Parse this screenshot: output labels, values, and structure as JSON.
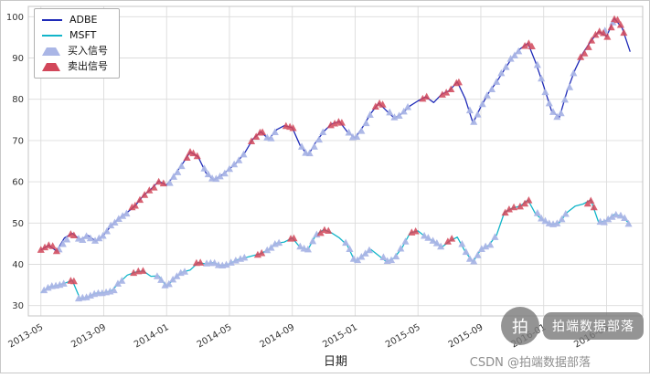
{
  "chart_data": {
    "type": "line",
    "title": "",
    "xlabel": "日期",
    "ylabel": "",
    "grid": true,
    "legend_position": "upper left",
    "ylim": [
      27.5,
      102.5
    ],
    "xlim": [
      -0.8,
      38.3
    ],
    "yticks": [
      30,
      40,
      50,
      60,
      70,
      80,
      90,
      100
    ],
    "xticks": [
      {
        "x": 0,
        "label": "2013-05"
      },
      {
        "x": 4,
        "label": "2013-09"
      },
      {
        "x": 8,
        "label": "2014-01"
      },
      {
        "x": 12,
        "label": "2014-05"
      },
      {
        "x": 16,
        "label": "2014-09"
      },
      {
        "x": 20,
        "label": "2015-01"
      },
      {
        "x": 24,
        "label": "2015-05"
      },
      {
        "x": 28,
        "label": "2015-09"
      },
      {
        "x": 32,
        "label": "2016-01"
      },
      {
        "x": 36,
        "label": "2016-05"
      }
    ],
    "legend": [
      {
        "label": "ADBE",
        "type": "line",
        "color": "#1f2bb8"
      },
      {
        "label": "MSFT",
        "type": "line",
        "color": "#12b5c9"
      },
      {
        "label": "买入信号",
        "type": "marker",
        "color": "#aab6e6"
      },
      {
        "label": "卖出信号",
        "type": "marker",
        "color": "#d2475a"
      }
    ],
    "series": [
      {
        "name": "ADBE",
        "color": "#1f2bb8",
        "x_start": 0,
        "x_step": 0.5,
        "values": [
          43.5,
          44.6,
          43.2,
          46.4,
          47.5,
          46.0,
          47.0,
          45.6,
          47.1,
          49.5,
          51.2,
          52.6,
          54.2,
          56.6,
          58.2,
          60.1,
          59.2,
          61.6,
          64.3,
          67.2,
          66.1,
          62.2,
          60.4,
          61.6,
          63.1,
          64.8,
          67.2,
          70.4,
          72.1,
          70.3,
          72.6,
          73.6,
          73.1,
          68.8,
          66.4,
          69.6,
          72.2,
          74.0,
          74.6,
          72.1,
          70.6,
          73.4,
          76.6,
          79.1,
          77.2,
          75.4,
          76.6,
          78.4,
          79.6,
          80.6,
          79.2,
          81.2,
          82.1,
          84.2,
          80.2,
          74.2,
          78.2,
          81.6,
          84.2,
          87.2,
          90.1,
          92.2,
          93.6,
          88.8,
          83.2,
          77.2,
          75.6,
          82.1,
          87.2,
          91.2,
          94.1,
          96.4,
          95.2,
          99.6,
          97.2,
          91.5
        ]
      },
      {
        "name": "MSFT",
        "color": "#12b5c9",
        "x_start": 0,
        "x_step": 0.5,
        "values": [
          33.1,
          34.5,
          34.8,
          35.4,
          36.1,
          31.6,
          32.1,
          33.0,
          33.1,
          33.6,
          35.6,
          37.4,
          38.1,
          38.4,
          37.1,
          37.2,
          34.6,
          36.6,
          38.1,
          38.6,
          40.4,
          40.1,
          40.4,
          39.6,
          40.1,
          41.1,
          41.6,
          42.1,
          42.6,
          43.6,
          45.1,
          45.4,
          46.4,
          44.1,
          43.6,
          47.1,
          48.4,
          47.6,
          46.4,
          44.6,
          40.6,
          42.1,
          43.6,
          42.1,
          40.6,
          41.6,
          44.1,
          47.6,
          48.1,
          46.6,
          45.6,
          44.1,
          45.6,
          46.6,
          43.1,
          40.6,
          43.6,
          44.6,
          47.1,
          52.6,
          53.6,
          54.1,
          55.6,
          52.1,
          50.6,
          49.6,
          50.1,
          52.6,
          54.1,
          54.6,
          55.6,
          50.1,
          50.6,
          52.1,
          51.6,
          49.6
        ]
      }
    ],
    "buy_signals": [
      [
        1.15,
        43.6
      ],
      [
        1.4,
        44.9
      ],
      [
        1.65,
        46.0
      ],
      [
        2.4,
        46.2
      ],
      [
        2.65,
        45.9
      ],
      [
        2.9,
        46.8
      ],
      [
        3.15,
        46.3
      ],
      [
        3.45,
        45.7
      ],
      [
        3.7,
        46.3
      ],
      [
        3.95,
        46.9
      ],
      [
        4.2,
        48.0
      ],
      [
        4.45,
        49.4
      ],
      [
        4.7,
        50.1
      ],
      [
        4.95,
        51.0
      ],
      [
        5.2,
        51.7
      ],
      [
        5.45,
        52.3
      ],
      [
        8.2,
        59.7
      ],
      [
        8.45,
        61.2
      ],
      [
        8.7,
        62.3
      ],
      [
        8.95,
        63.8
      ],
      [
        10.4,
        63.2
      ],
      [
        10.65,
        61.8
      ],
      [
        10.9,
        60.8
      ],
      [
        11.15,
        60.7
      ],
      [
        11.4,
        61.3
      ],
      [
        11.7,
        62.0
      ],
      [
        12.0,
        63.1
      ],
      [
        12.3,
        64.2
      ],
      [
        12.6,
        65.2
      ],
      [
        12.9,
        66.6
      ],
      [
        14.4,
        70.7
      ],
      [
        14.65,
        70.5
      ],
      [
        14.9,
        72.0
      ],
      [
        16.6,
        68.5
      ],
      [
        16.85,
        67.0
      ],
      [
        17.1,
        66.9
      ],
      [
        17.4,
        68.5
      ],
      [
        17.7,
        70.2
      ],
      [
        17.95,
        72.0
      ],
      [
        19.6,
        71.9
      ],
      [
        19.85,
        70.8
      ],
      [
        20.1,
        70.9
      ],
      [
        20.4,
        72.3
      ],
      [
        20.7,
        74.2
      ],
      [
        20.95,
        76.2
      ],
      [
        22.2,
        76.8
      ],
      [
        22.5,
        75.6
      ],
      [
        22.8,
        76.0
      ],
      [
        23.1,
        77.0
      ],
      [
        23.35,
        78.1
      ],
      [
        27.3,
        77.3
      ],
      [
        27.55,
        74.5
      ],
      [
        27.8,
        76.3
      ],
      [
        28.1,
        78.8
      ],
      [
        28.4,
        80.9
      ],
      [
        28.7,
        82.4
      ],
      [
        29.0,
        84.2
      ],
      [
        29.3,
        86.3
      ],
      [
        29.6,
        87.8
      ],
      [
        29.9,
        89.8
      ],
      [
        30.15,
        90.6
      ],
      [
        30.4,
        91.6
      ],
      [
        31.6,
        88.3
      ],
      [
        31.85,
        85.0
      ],
      [
        32.1,
        81.7
      ],
      [
        32.35,
        79.0
      ],
      [
        32.6,
        76.9
      ],
      [
        32.85,
        75.7
      ],
      [
        33.1,
        76.6
      ],
      [
        33.35,
        79.9
      ],
      [
        33.65,
        82.9
      ],
      [
        33.9,
        86.3
      ],
      [
        35.9,
        96.6
      ],
      [
        36.4,
        98.6
      ],
      [
        0.2,
        33.7
      ],
      [
        0.45,
        34.3
      ],
      [
        0.7,
        34.7
      ],
      [
        0.95,
        34.8
      ],
      [
        1.2,
        35.0
      ],
      [
        1.45,
        35.3
      ],
      [
        2.4,
        31.7
      ],
      [
        2.65,
        31.9
      ],
      [
        2.9,
        32.0
      ],
      [
        3.15,
        32.4
      ],
      [
        3.4,
        32.8
      ],
      [
        3.65,
        33.0
      ],
      [
        3.9,
        33.0
      ],
      [
        4.15,
        33.2
      ],
      [
        4.4,
        33.4
      ],
      [
        4.65,
        33.7
      ],
      [
        4.9,
        35.3
      ],
      [
        5.15,
        36.0
      ],
      [
        7.4,
        37.1
      ],
      [
        7.65,
        36.2
      ],
      [
        7.9,
        34.9
      ],
      [
        8.15,
        35.2
      ],
      [
        8.4,
        36.3
      ],
      [
        8.65,
        37.1
      ],
      [
        8.9,
        37.9
      ],
      [
        9.15,
        38.2
      ],
      [
        10.55,
        40.2
      ],
      [
        10.8,
        40.3
      ],
      [
        11.05,
        40.3
      ],
      [
        11.3,
        39.8
      ],
      [
        11.55,
        39.7
      ],
      [
        11.8,
        39.9
      ],
      [
        12.1,
        40.4
      ],
      [
        12.4,
        40.9
      ],
      [
        12.7,
        41.3
      ],
      [
        12.95,
        41.6
      ],
      [
        14.4,
        43.4
      ],
      [
        14.65,
        44.0
      ],
      [
        14.9,
        44.9
      ],
      [
        15.15,
        45.2
      ],
      [
        16.5,
        44.3
      ],
      [
        16.75,
        43.8
      ],
      [
        17.0,
        43.6
      ],
      [
        17.3,
        45.6
      ],
      [
        17.55,
        47.2
      ],
      [
        19.4,
        45.2
      ],
      [
        19.65,
        43.7
      ],
      [
        19.9,
        41.3
      ],
      [
        20.15,
        41.0
      ],
      [
        20.4,
        41.8
      ],
      [
        20.65,
        42.6
      ],
      [
        20.9,
        43.4
      ],
      [
        21.8,
        41.7
      ],
      [
        22.05,
        40.8
      ],
      [
        22.3,
        41.0
      ],
      [
        22.6,
        41.9
      ],
      [
        22.9,
        43.8
      ],
      [
        23.2,
        45.5
      ],
      [
        24.4,
        46.9
      ],
      [
        24.65,
        46.4
      ],
      [
        24.95,
        45.7
      ],
      [
        25.2,
        45.1
      ],
      [
        25.45,
        44.3
      ],
      [
        26.8,
        44.9
      ],
      [
        27.05,
        43.0
      ],
      [
        27.3,
        41.3
      ],
      [
        27.55,
        40.7
      ],
      [
        27.8,
        42.2
      ],
      [
        28.05,
        43.7
      ],
      [
        28.3,
        44.3
      ],
      [
        28.6,
        44.7
      ],
      [
        28.9,
        46.6
      ],
      [
        31.6,
        52.4
      ],
      [
        31.85,
        51.1
      ],
      [
        32.1,
        50.5
      ],
      [
        32.35,
        49.9
      ],
      [
        32.6,
        49.7
      ],
      [
        32.85,
        49.9
      ],
      [
        33.15,
        50.9
      ],
      [
        33.4,
        52.2
      ],
      [
        35.6,
        50.3
      ],
      [
        35.85,
        50.2
      ],
      [
        36.1,
        50.9
      ],
      [
        36.35,
        51.5
      ],
      [
        36.6,
        52.0
      ],
      [
        36.9,
        51.8
      ],
      [
        37.15,
        51.2
      ],
      [
        37.4,
        49.8
      ]
    ],
    "sell_signals": [
      [
        0,
        43.5
      ],
      [
        0.25,
        44.1
      ],
      [
        0.5,
        44.6
      ],
      [
        0.75,
        44.4
      ],
      [
        1.0,
        43.2
      ],
      [
        1.9,
        47.3
      ],
      [
        2.1,
        47.0
      ],
      [
        5.8,
        53.8
      ],
      [
        6.0,
        54.2
      ],
      [
        6.3,
        55.6
      ],
      [
        6.6,
        56.8
      ],
      [
        6.9,
        57.9
      ],
      [
        7.2,
        58.6
      ],
      [
        7.5,
        60.0
      ],
      [
        7.8,
        59.6
      ],
      [
        9.3,
        65.8
      ],
      [
        9.5,
        67.2
      ],
      [
        9.7,
        66.9
      ],
      [
        9.95,
        66.2
      ],
      [
        13.4,
        69.8
      ],
      [
        13.7,
        70.9
      ],
      [
        13.95,
        71.9
      ],
      [
        14.1,
        72.0
      ],
      [
        15.6,
        73.5
      ],
      [
        15.85,
        73.3
      ],
      [
        16.05,
        73.0
      ],
      [
        18.45,
        73.7
      ],
      [
        18.7,
        74.1
      ],
      [
        18.95,
        74.5
      ],
      [
        19.15,
        74.3
      ],
      [
        21.3,
        78.2
      ],
      [
        21.55,
        79.0
      ],
      [
        21.75,
        78.7
      ],
      [
        24.3,
        80.1
      ],
      [
        24.55,
        80.6
      ],
      [
        25.55,
        81.1
      ],
      [
        25.8,
        81.6
      ],
      [
        26.1,
        82.4
      ],
      [
        26.45,
        83.9
      ],
      [
        26.6,
        84.1
      ],
      [
        30.8,
        92.9
      ],
      [
        31.05,
        93.5
      ],
      [
        31.25,
        92.8
      ],
      [
        34.35,
        90.2
      ],
      [
        34.6,
        91.1
      ],
      [
        34.85,
        92.6
      ],
      [
        35.05,
        94.2
      ],
      [
        35.3,
        95.6
      ],
      [
        35.55,
        96.4
      ],
      [
        35.8,
        96.0
      ],
      [
        36.05,
        95.1
      ],
      [
        36.3,
        97.4
      ],
      [
        36.5,
        99.4
      ],
      [
        36.7,
        99.2
      ],
      [
        36.9,
        98.0
      ],
      [
        37.1,
        96.1
      ],
      [
        1.9,
        36.0
      ],
      [
        2.1,
        35.9
      ],
      [
        5.9,
        37.9
      ],
      [
        6.2,
        38.3
      ],
      [
        6.5,
        38.4
      ],
      [
        9.9,
        40.3
      ],
      [
        10.15,
        40.4
      ],
      [
        13.8,
        42.3
      ],
      [
        14.05,
        42.7
      ],
      [
        15.9,
        46.2
      ],
      [
        16.1,
        46.3
      ],
      [
        17.8,
        47.6
      ],
      [
        18.05,
        48.3
      ],
      [
        18.3,
        48.1
      ],
      [
        23.6,
        47.7
      ],
      [
        23.85,
        48.0
      ],
      [
        25.9,
        45.5
      ],
      [
        26.15,
        46.2
      ],
      [
        29.55,
        52.5
      ],
      [
        29.8,
        53.3
      ],
      [
        30.1,
        53.8
      ],
      [
        30.5,
        54.0
      ],
      [
        30.8,
        54.7
      ],
      [
        31.05,
        55.5
      ],
      [
        34.8,
        54.7
      ],
      [
        35.0,
        55.4
      ],
      [
        35.2,
        53.8
      ]
    ]
  },
  "watermark": {
    "logo_char": "拍",
    "logo_text": "拍端数据部落",
    "credit": "CSDN @拍端数据部落"
  }
}
